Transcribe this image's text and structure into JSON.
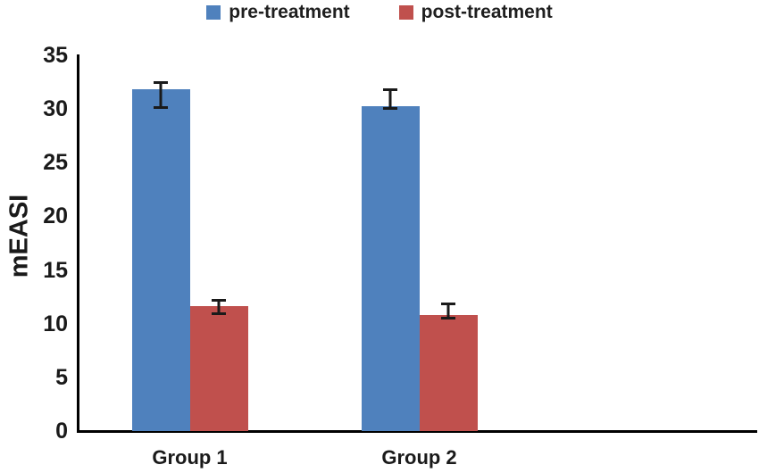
{
  "chart_data": {
    "type": "bar",
    "title": "",
    "xlabel": "",
    "ylabel": "mEASI",
    "categories": [
      "Group 1",
      "Group 2"
    ],
    "series": [
      {
        "name": "pre-treatment",
        "color": "#4f81bd",
        "values": [
          31.8,
          30.3
        ],
        "error_up": [
          0.8,
          1.6
        ],
        "error_down": [
          1.8,
          0.4
        ]
      },
      {
        "name": "post-treatment",
        "color": "#c0504d",
        "values": [
          11.6,
          10.8
        ],
        "error_up": [
          0.7,
          1.2
        ],
        "error_down": [
          0.8,
          0.4
        ]
      }
    ],
    "ylim": [
      0,
      35
    ],
    "yticks": [
      0,
      5,
      10,
      15,
      20,
      25,
      30,
      35
    ],
    "grid": false,
    "legend_position": "top",
    "error_bar_color": "#1a1a1a",
    "axis_color": "#000000",
    "text_color": "#1a1a1a"
  }
}
